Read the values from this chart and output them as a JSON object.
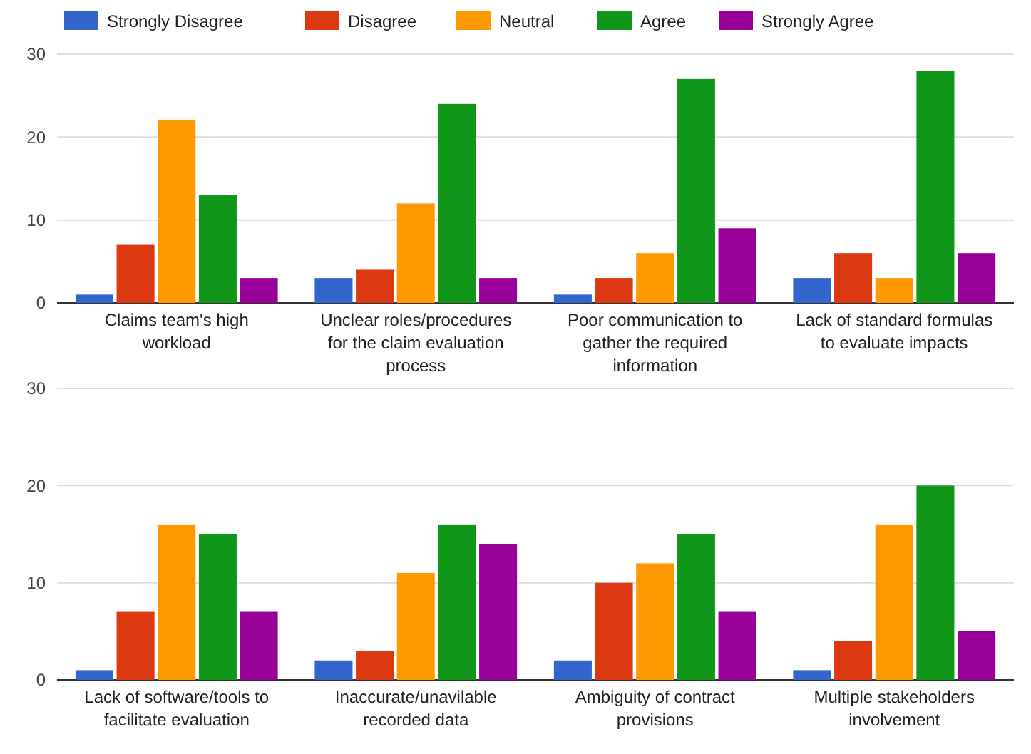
{
  "chart_data": [
    {
      "type": "bar",
      "categories": [
        "Claims team's high workload",
        "Unclear roles/procedures for the claim evaluation process",
        "Poor communication to gather the required information",
        "Lack of standard formulas to evaluate impacts"
      ],
      "series": [
        {
          "name": "Strongly Disagree",
          "color": "#3366cc",
          "values": [
            1,
            3,
            1,
            3
          ]
        },
        {
          "name": "Disagree",
          "color": "#dc3912",
          "values": [
            7,
            4,
            3,
            6
          ]
        },
        {
          "name": "Neutral",
          "color": "#ff9900",
          "values": [
            22,
            12,
            6,
            3
          ]
        },
        {
          "name": "Agree",
          "color": "#109618",
          "values": [
            13,
            24,
            27,
            28
          ]
        },
        {
          "name": "Strongly Agree",
          "color": "#990099",
          "values": [
            3,
            3,
            9,
            6
          ]
        }
      ],
      "ylim": [
        0,
        30
      ],
      "yticks": [
        0,
        10,
        20,
        30
      ],
      "grid": "y",
      "legend": "top left"
    },
    {
      "type": "bar",
      "categories": [
        "Lack of software/tools to facilitate evaluation",
        "Inaccurate/unavilable recorded data",
        "Ambiguity of contract provisions",
        "Multiple stakeholders involvement"
      ],
      "series": [
        {
          "color": "#3366cc",
          "values": [
            1,
            2,
            2,
            1
          ]
        },
        {
          "color": "#dc3912",
          "values": [
            7,
            3,
            10,
            4
          ]
        },
        {
          "color": "#ff9900",
          "values": [
            16,
            11,
            12,
            16
          ]
        },
        {
          "color": "#109618",
          "values": [
            15,
            16,
            15,
            20
          ]
        },
        {
          "color": "#990099",
          "values": [
            7,
            14,
            7,
            5
          ]
        }
      ],
      "ylim": [
        0,
        30
      ],
      "yticks": [
        0,
        10,
        20,
        30
      ],
      "grid": "y"
    }
  ]
}
